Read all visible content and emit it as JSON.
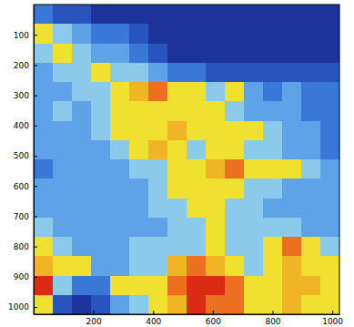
{
  "chart_data": {
    "type": "heatmap",
    "xbins": [
      0,
      64,
      128,
      192,
      256,
      320,
      384,
      448,
      512,
      576,
      640,
      704,
      768,
      832,
      896,
      960,
      1024
    ],
    "ybins": [
      0,
      64,
      128,
      192,
      256,
      320,
      384,
      448,
      512,
      576,
      640,
      704,
      768,
      832,
      896,
      960,
      1024
    ],
    "values": [
      [
        3,
        2,
        2,
        1,
        1,
        1,
        1,
        1,
        1,
        1,
        1,
        1,
        1,
        1,
        1,
        1
      ],
      [
        6,
        5,
        4,
        3,
        3,
        2,
        1,
        1,
        1,
        1,
        1,
        1,
        1,
        1,
        1,
        1
      ],
      [
        5,
        6,
        5,
        4,
        4,
        3,
        2,
        1,
        1,
        1,
        1,
        1,
        1,
        1,
        1,
        1
      ],
      [
        4,
        5,
        5,
        6,
        5,
        5,
        4,
        3,
        3,
        2,
        2,
        2,
        2,
        2,
        2,
        2
      ],
      [
        4,
        4,
        5,
        5,
        6,
        7,
        8,
        6,
        6,
        5,
        6,
        4,
        3,
        4,
        3,
        3
      ],
      [
        4,
        5,
        4,
        5,
        6,
        6,
        6,
        6,
        6,
        6,
        5,
        4,
        4,
        4,
        3,
        3
      ],
      [
        4,
        4,
        4,
        5,
        6,
        6,
        6,
        7,
        6,
        6,
        6,
        6,
        5,
        4,
        4,
        3
      ],
      [
        4,
        4,
        4,
        4,
        5,
        6,
        7,
        6,
        5,
        6,
        6,
        5,
        5,
        4,
        4,
        3
      ],
      [
        3,
        4,
        4,
        4,
        4,
        5,
        5,
        6,
        6,
        7,
        8,
        6,
        6,
        6,
        5,
        4
      ],
      [
        4,
        4,
        4,
        4,
        4,
        4,
        5,
        6,
        6,
        6,
        6,
        5,
        5,
        4,
        4,
        4
      ],
      [
        4,
        4,
        4,
        4,
        4,
        4,
        5,
        5,
        6,
        6,
        5,
        5,
        4,
        4,
        4,
        4
      ],
      [
        5,
        4,
        4,
        4,
        4,
        4,
        4,
        5,
        5,
        6,
        5,
        5,
        5,
        5,
        4,
        4
      ],
      [
        6,
        5,
        4,
        4,
        4,
        5,
        5,
        5,
        5,
        6,
        5,
        5,
        6,
        8,
        6,
        5
      ],
      [
        7,
        6,
        6,
        4,
        4,
        5,
        5,
        7,
        8,
        7,
        6,
        5,
        6,
        7,
        6,
        6
      ],
      [
        9,
        5,
        3,
        3,
        6,
        6,
        6,
        8,
        9,
        9,
        8,
        6,
        6,
        7,
        7,
        6
      ],
      [
        6,
        2,
        1,
        2,
        4,
        5,
        6,
        7,
        9,
        8,
        8,
        6,
        6,
        7,
        6,
        6
      ]
    ],
    "zlim": [
      0,
      10
    ],
    "xlim": [
      0,
      1024
    ],
    "ylim": [
      1024,
      0
    ],
    "xticks": [
      200,
      400,
      600,
      800,
      1000
    ],
    "yticks": [
      100,
      200,
      300,
      400,
      500,
      600,
      700,
      800,
      900,
      1000
    ]
  }
}
